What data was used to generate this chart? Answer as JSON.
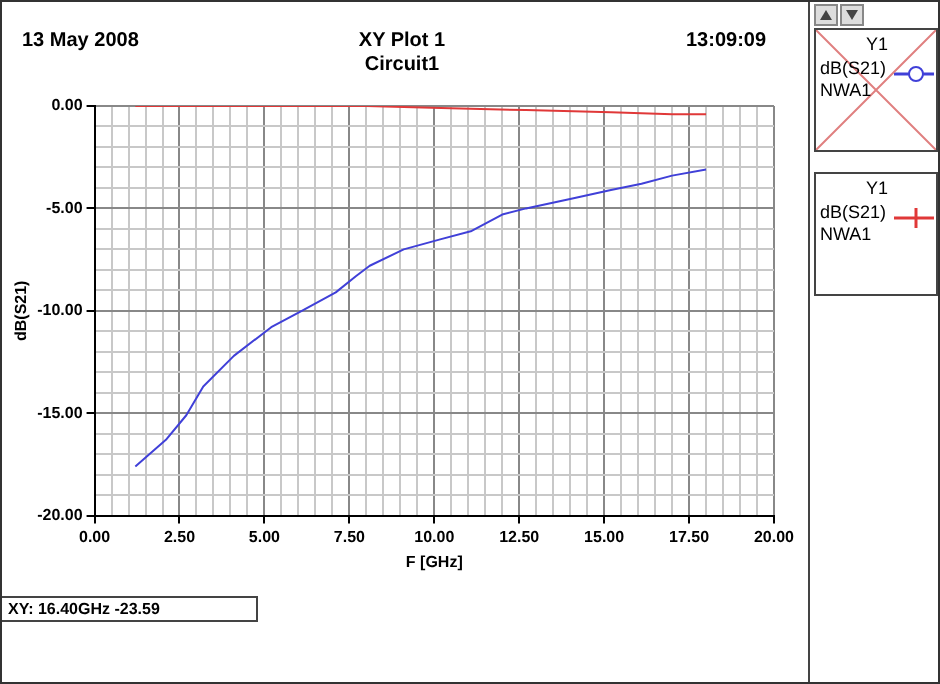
{
  "chart_data": {
    "type": "line",
    "title": "XY Plot 1",
    "subtitle": "Circuit1",
    "xlabel": "F [GHz]",
    "ylabel": "dB(S21)",
    "annotations": [
      "13 May 2008",
      "13:09:09",
      "XY: 16.40GHz -23.59",
      "Y1",
      "Y1"
    ],
    "legend": "right",
    "grid": true,
    "marker": "none",
    "line_style": "solid",
    "xlim": [
      0,
      20
    ],
    "ylim": [
      -20,
      0
    ],
    "xticks": [
      {
        "value": 0,
        "label": "0.00"
      },
      {
        "value": 0.5,
        "label": null
      },
      {
        "value": 1,
        "label": null
      },
      {
        "value": 1.5,
        "label": null
      },
      {
        "value": 2,
        "label": null
      },
      {
        "value": 2.5,
        "label": "2.50"
      },
      {
        "value": 3,
        "label": null
      },
      {
        "value": 3.5,
        "label": null
      },
      {
        "value": 4,
        "label": null
      },
      {
        "value": 4.5,
        "label": null
      },
      {
        "value": 5,
        "label": "5.00"
      },
      {
        "value": 5.5,
        "label": null
      },
      {
        "value": 6,
        "label": null
      },
      {
        "value": 6.5,
        "label": null
      },
      {
        "value": 7,
        "label": null
      },
      {
        "value": 7.5,
        "label": "7.50"
      },
      {
        "value": 8,
        "label": null
      },
      {
        "value": 8.5,
        "label": null
      },
      {
        "value": 9,
        "label": null
      },
      {
        "value": 9.5,
        "label": null
      },
      {
        "value": 10,
        "label": "10.00"
      },
      {
        "value": 10.5,
        "label": null
      },
      {
        "value": 11,
        "label": null
      },
      {
        "value": 11.5,
        "label": null
      },
      {
        "value": 12,
        "label": null
      },
      {
        "value": 12.5,
        "label": "12.50"
      },
      {
        "value": 13,
        "label": null
      },
      {
        "value": 13.5,
        "label": null
      },
      {
        "value": 14,
        "label": null
      },
      {
        "value": 14.5,
        "label": null
      },
      {
        "value": 15,
        "label": "15.00"
      },
      {
        "value": 15.5,
        "label": null
      },
      {
        "value": 16,
        "label": null
      },
      {
        "value": 16.5,
        "label": null
      },
      {
        "value": 17,
        "label": null
      },
      {
        "value": 17.5,
        "label": "17.50"
      },
      {
        "value": 18,
        "label": null
      },
      {
        "value": 18.5,
        "label": null
      },
      {
        "value": 19,
        "label": null
      },
      {
        "value": 19.5,
        "label": null
      },
      {
        "value": 20,
        "label": "20.00"
      }
    ],
    "yticks": [
      {
        "value": -20,
        "label": "-20.00"
      },
      {
        "value": -19,
        "label": null
      },
      {
        "value": -18,
        "label": null
      },
      {
        "value": -17,
        "label": null
      },
      {
        "value": -16,
        "label": null
      },
      {
        "value": -15,
        "label": "-15.00"
      },
      {
        "value": -14,
        "label": null
      },
      {
        "value": -13,
        "label": null
      },
      {
        "value": -12,
        "label": null
      },
      {
        "value": -11,
        "label": null
      },
      {
        "value": -10,
        "label": "-10.00"
      },
      {
        "value": -9,
        "label": null
      },
      {
        "value": -8,
        "label": null
      },
      {
        "value": -7,
        "label": null
      },
      {
        "value": -6,
        "label": null
      },
      {
        "value": -5,
        "label": "-5.00"
      },
      {
        "value": -4,
        "label": null
      },
      {
        "value": -3,
        "label": null
      },
      {
        "value": -2,
        "label": null
      },
      {
        "value": -1,
        "label": null
      },
      {
        "value": 0,
        "label": "0.00"
      }
    ],
    "series": [
      {
        "name": "dB(S21) NWA1",
        "color": "#4040d8",
        "x": [
          1.2,
          2.1,
          2.7,
          3.2,
          4.1,
          5.2,
          6.1,
          7.1,
          7.7,
          8.1,
          9.1,
          10.2,
          11.1,
          12.0,
          12.7,
          14.1,
          15.2,
          16.1,
          17.0,
          18.0
        ],
        "values": [
          -17.6,
          -16.3,
          -15.1,
          -13.7,
          -12.2,
          -10.8,
          -10.0,
          -9.1,
          -8.3,
          -7.8,
          -7.0,
          -6.5,
          -6.1,
          -5.3,
          -5.0,
          -4.5,
          -4.1,
          -3.8,
          -3.4,
          -3.1
        ]
      },
      {
        "name": "dB(S21) NWA1",
        "color": "#e03838",
        "x": [
          1.2,
          2.1,
          5.0,
          8.0,
          10.2,
          12.7,
          15.2,
          17.0,
          18.0
        ],
        "values": [
          0,
          0,
          0,
          0,
          -0.1,
          -0.2,
          -0.3,
          -0.4,
          -0.4
        ]
      }
    ]
  }
}
